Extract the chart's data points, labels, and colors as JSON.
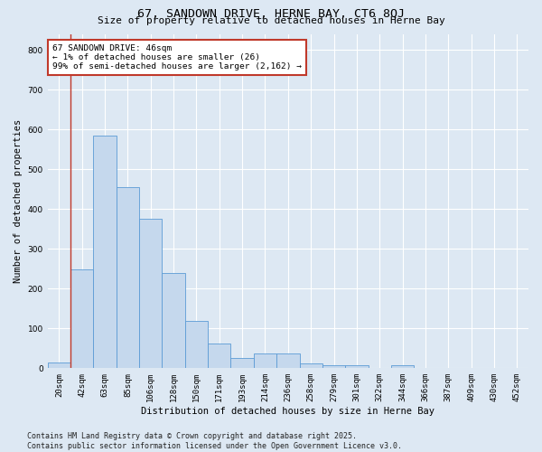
{
  "title": "67, SANDOWN DRIVE, HERNE BAY, CT6 8QJ",
  "subtitle": "Size of property relative to detached houses in Herne Bay",
  "xlabel": "Distribution of detached houses by size in Herne Bay",
  "ylabel": "Number of detached properties",
  "bar_labels": [
    "20sqm",
    "42sqm",
    "63sqm",
    "85sqm",
    "106sqm",
    "128sqm",
    "150sqm",
    "171sqm",
    "193sqm",
    "214sqm",
    "236sqm",
    "258sqm",
    "279sqm",
    "301sqm",
    "322sqm",
    "344sqm",
    "366sqm",
    "387sqm",
    "409sqm",
    "430sqm",
    "452sqm"
  ],
  "bar_values": [
    15,
    248,
    585,
    455,
    375,
    240,
    120,
    62,
    25,
    38,
    38,
    12,
    8,
    8,
    0,
    8,
    0,
    0,
    0,
    0,
    0
  ],
  "highlight_index": 1,
  "bar_color": "#c5d8ed",
  "bar_edge_color": "#5b9bd5",
  "highlight_line_color": "#c0392b",
  "annotation_box_text": "67 SANDOWN DRIVE: 46sqm\n← 1% of detached houses are smaller (26)\n99% of semi-detached houses are larger (2,162) →",
  "annotation_box_edge_color": "#c0392b",
  "annotation_box_bg": "#ffffff",
  "ylim": [
    0,
    840
  ],
  "yticks": [
    0,
    100,
    200,
    300,
    400,
    500,
    600,
    700,
    800
  ],
  "background_color": "#dde8f3",
  "grid_color": "#ffffff",
  "footer": "Contains HM Land Registry data © Crown copyright and database right 2025.\nContains public sector information licensed under the Open Government Licence v3.0.",
  "title_fontsize": 9.5,
  "subtitle_fontsize": 8,
  "axis_label_fontsize": 7.5,
  "tick_fontsize": 6.5,
  "annotation_fontsize": 6.8,
  "footer_fontsize": 6.0
}
